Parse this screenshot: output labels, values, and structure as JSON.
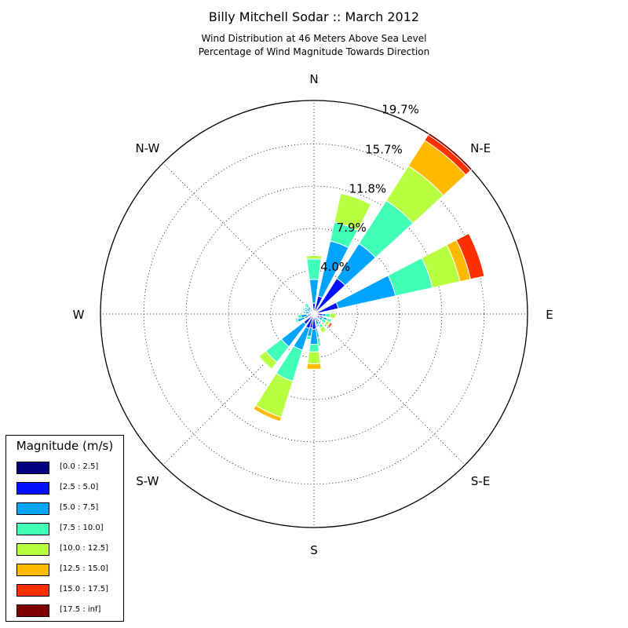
{
  "title": "Billy Mitchell Sodar :: March 2012",
  "subtitle": "Wind Distribution at 46 Meters Above Sea Level\nPercentage of Wind Magnitude Towards Direction",
  "chart_data": {
    "type": "windrose",
    "title": "Billy Mitchell Sodar :: March 2012",
    "subtitle": "Wind Distribution at 46 Meters Above Sea Level / Percentage of Wind Magnitude Towards Direction",
    "radial_unit": "percent",
    "radial_max": 19.7,
    "radial_ticks": [
      4.0,
      7.9,
      11.8,
      15.7,
      19.7
    ],
    "radial_tick_labels": [
      "4.0%",
      "7.9%",
      "11.8%",
      "15.7%",
      "19.7%"
    ],
    "direction_labels": [
      {
        "label": "N",
        "angle": 0
      },
      {
        "label": "N-E",
        "angle": 45
      },
      {
        "label": "E",
        "angle": 90
      },
      {
        "label": "S-E",
        "angle": 135
      },
      {
        "label": "S",
        "angle": 180
      },
      {
        "label": "S-W",
        "angle": 225
      },
      {
        "label": "W",
        "angle": 270
      },
      {
        "label": "N-W",
        "angle": 315
      }
    ],
    "legend_title": "Magnitude (m/s)",
    "legend_placement": "lower-left",
    "bins": [
      {
        "label": "[0.0 : 2.5]",
        "color": "#000080"
      },
      {
        "label": "[2.5 : 5.0]",
        "color": "#0010ff"
      },
      {
        "label": "[5.0 : 7.5]",
        "color": "#00a4ff"
      },
      {
        "label": "[7.5 : 10.0]",
        "color": "#40ffb7"
      },
      {
        "label": "[10.0 : 12.5]",
        "color": "#b7ff40"
      },
      {
        "label": "[12.5 : 15.0]",
        "color": "#ffb900"
      },
      {
        "label": "[15.0 : 17.5]",
        "color": "#ff3000"
      },
      {
        "label": "[17.5 : inf]",
        "color": "#800000"
      }
    ],
    "sector_width_deg": 15,
    "sectors": [
      {
        "dir": 0,
        "cumulative": [
          0.2,
          1.0,
          3.2,
          5.1,
          5.4
        ]
      },
      {
        "dir": 20,
        "cumulative": [
          0.2,
          1.7,
          6.9,
          8.7,
          11.4
        ]
      },
      {
        "dir": 40,
        "cumulative": [
          0.2,
          3.9,
          7.7,
          12.4,
          16.2,
          19.0,
          19.6,
          19.8
        ]
      },
      {
        "dir": 70,
        "cumulative": [
          0.2,
          2.3,
          7.7,
          11.2,
          13.8,
          14.8,
          16.1
        ]
      },
      {
        "dir": 95,
        "cumulative": [
          0.1,
          0.8,
          1.1,
          1.5,
          2.0
        ]
      },
      {
        "dir": 115,
        "cumulative": [
          0.1,
          0.9,
          1.3,
          1.7
        ]
      },
      {
        "dir": 125,
        "cumulative": [
          0.1,
          0.6,
          0.9,
          1.3,
          1.6,
          1.7,
          1.9
        ]
      },
      {
        "dir": 150,
        "cumulative": [
          0.1,
          0.8,
          1.1,
          1.4,
          1.9
        ]
      },
      {
        "dir": 160,
        "cumulative": [
          0.1,
          0.6,
          1.0,
          1.2
        ]
      },
      {
        "dir": 175,
        "cumulative": [
          0.2,
          1.3,
          2.2,
          3.0
        ]
      },
      {
        "dir": 180,
        "cumulative": [
          0.2,
          1.4,
          2.8,
          3.5,
          4.6,
          5.1
        ]
      },
      {
        "dir": 195,
        "cumulative": [
          0.2,
          1.3,
          2.1,
          2.4
        ]
      },
      {
        "dir": 205,
        "cumulative": [
          0.3,
          1.4,
          3.5,
          6.5,
          10.0,
          10.4
        ]
      },
      {
        "dir": 225,
        "cumulative": [
          0.2,
          1.2,
          3.8,
          5.6,
          6.4
        ]
      },
      {
        "dir": 250,
        "cumulative": [
          0.2,
          0.9,
          1.6,
          1.8
        ]
      },
      {
        "dir": 260,
        "cumulative": [
          0.1,
          0.6,
          1.2,
          1.5
        ]
      },
      {
        "dir": 280,
        "cumulative": [
          0.1,
          0.4,
          0.8,
          1.0
        ]
      },
      {
        "dir": 295,
        "cumulative": [
          0.1,
          0.6,
          0.9,
          1.1
        ]
      },
      {
        "dir": 305,
        "cumulative": [
          0.1,
          0.4,
          0.8,
          1.0
        ]
      },
      {
        "dir": 320,
        "cumulative": [
          0.1,
          0.5,
          0.8,
          1.2
        ]
      }
    ]
  }
}
